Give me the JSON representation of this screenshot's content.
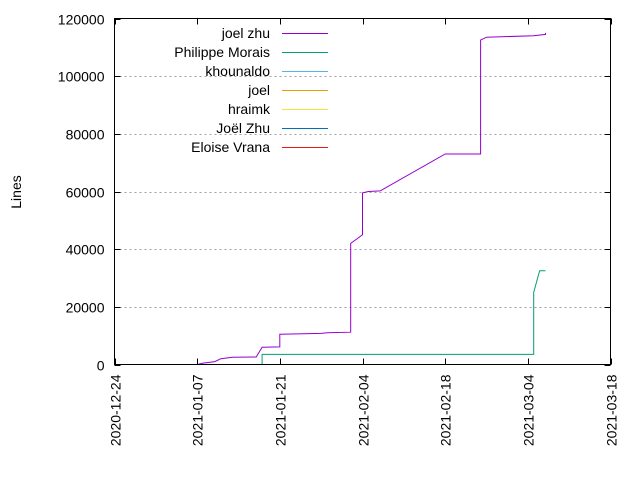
{
  "chart_data": {
    "type": "line",
    "title": "",
    "xlabel": "",
    "ylabel": "Lines",
    "x_tick_labels": [
      "2020-12-24",
      "2021-01-07",
      "2021-01-21",
      "2021-02-04",
      "2021-02-18",
      "2021-03-04",
      "2021-03-18"
    ],
    "x_range": [
      "2020-12-24",
      "2021-03-18"
    ],
    "y_ticks": [
      0,
      20000,
      40000,
      60000,
      80000,
      100000,
      120000
    ],
    "y_tick_labels": [
      "0",
      "20000",
      "40000",
      "60000",
      "80000",
      "100000",
      "120000"
    ],
    "ylim": [
      0,
      120000
    ],
    "grid": "horizontal dotted",
    "legend_position": "top-left",
    "series": [
      {
        "name": "joel zhu",
        "color": "#9400d3",
        "points": [
          [
            "2021-01-07",
            0
          ],
          [
            "2021-01-08",
            500
          ],
          [
            "2021-01-10",
            1000
          ],
          [
            "2021-01-11",
            2000
          ],
          [
            "2021-01-13",
            2500
          ],
          [
            "2021-01-17",
            2600
          ],
          [
            "2021-01-18",
            6000
          ],
          [
            "2021-01-21",
            6100
          ],
          [
            "2021-01-21",
            10500
          ],
          [
            "2021-01-28",
            10800
          ],
          [
            "2021-01-29",
            11000
          ],
          [
            "2021-02-02",
            11200
          ],
          [
            "2021-02-02",
            42000
          ],
          [
            "2021-02-03",
            43500
          ],
          [
            "2021-02-04",
            45000
          ],
          [
            "2021-02-04",
            59500
          ],
          [
            "2021-02-05",
            60000
          ],
          [
            "2021-02-07",
            60200
          ],
          [
            "2021-02-18",
            73000
          ],
          [
            "2021-02-24",
            73000
          ],
          [
            "2021-02-24",
            112500
          ],
          [
            "2021-02-25",
            113500
          ],
          [
            "2021-03-05",
            114000
          ],
          [
            "2021-03-07",
            114500
          ],
          [
            "2021-03-07",
            115000
          ]
        ]
      },
      {
        "name": "Philippe Morais",
        "color": "#009e73",
        "points": [
          [
            "2021-01-18",
            0
          ],
          [
            "2021-01-18",
            3500
          ],
          [
            "2021-03-05",
            3500
          ],
          [
            "2021-03-05",
            25000
          ],
          [
            "2021-03-06",
            32500
          ],
          [
            "2021-03-07",
            32500
          ]
        ]
      },
      {
        "name": "khounaldo",
        "color": "#56b4e9",
        "points": []
      },
      {
        "name": "joel",
        "color": "#e69f00",
        "points": []
      },
      {
        "name": "hraimk",
        "color": "#f0e442",
        "points": []
      },
      {
        "name": "Joël Zhu",
        "color": "#0072b2",
        "points": []
      },
      {
        "name": "Eloise Vrana",
        "color": "#e51e10",
        "points": []
      }
    ]
  }
}
